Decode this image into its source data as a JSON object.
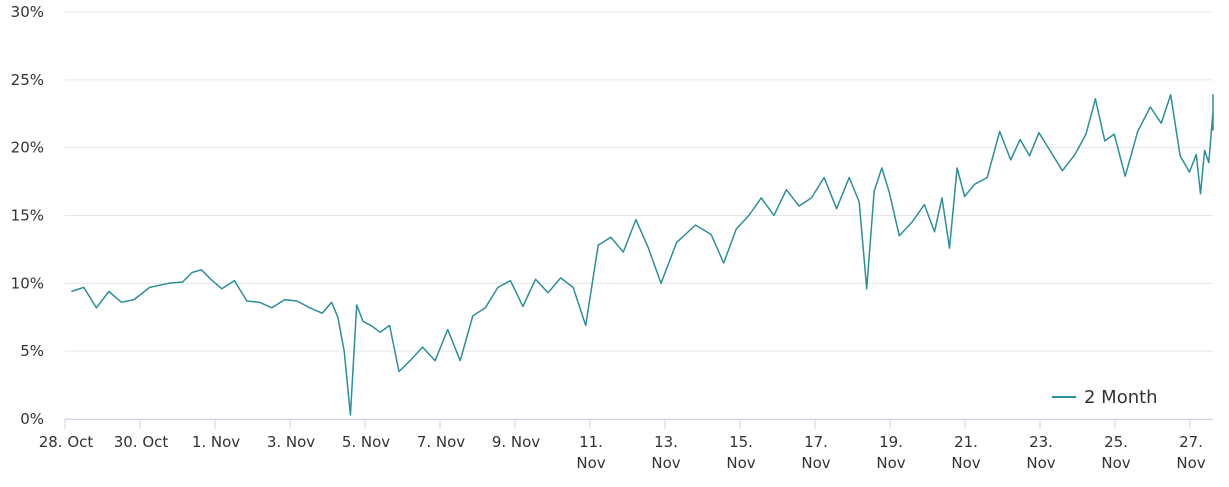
{
  "chart_data": {
    "type": "line",
    "title": "",
    "xlabel": "",
    "ylabel": "",
    "ylim": [
      0,
      30
    ],
    "y_ticks": [
      "0%",
      "5%",
      "10%",
      "15%",
      "20%",
      "25%",
      "30%"
    ],
    "x_range": [
      "2021-10-28",
      "2021-11-27"
    ],
    "x_ticks": [
      [
        "28. Oct"
      ],
      [
        "30. Oct"
      ],
      [
        "1. Nov"
      ],
      [
        "3. Nov"
      ],
      [
        "5. Nov"
      ],
      [
        "7. Nov"
      ],
      [
        "9. Nov"
      ],
      [
        "11.",
        "Nov"
      ],
      [
        "13.",
        "Nov"
      ],
      [
        "15.",
        "Nov"
      ],
      [
        "17.",
        "Nov"
      ],
      [
        "19.",
        "Nov"
      ],
      [
        "21.",
        "Nov"
      ],
      [
        "23.",
        "Nov"
      ],
      [
        "25.",
        "Nov"
      ],
      [
        "27.",
        "Nov"
      ]
    ],
    "grid": true,
    "legend_position": "bottom-right",
    "line_color": "#2b8f9c",
    "series": [
      {
        "name": "2 Month",
        "points": [
          [
            "2021-10-28",
            9.4
          ],
          [
            "2021-10-28",
            9.7
          ],
          [
            "2021-10-28",
            8.2
          ],
          [
            "2021-10-29",
            9.4
          ],
          [
            "2021-10-29",
            8.6
          ],
          [
            "2021-10-29",
            8.8
          ],
          [
            "2021-10-30",
            9.7
          ],
          [
            "2021-10-30",
            10.0
          ],
          [
            "2021-10-31",
            10.1
          ],
          [
            "2021-10-31",
            10.8
          ],
          [
            "2021-10-31",
            11.0
          ],
          [
            "2021-10-31",
            10.3
          ],
          [
            "2021-11-01",
            9.6
          ],
          [
            "2021-11-01",
            10.2
          ],
          [
            "2021-11-01",
            8.7
          ],
          [
            "2021-11-02",
            8.6
          ],
          [
            "2021-11-02",
            8.2
          ],
          [
            "2021-11-02",
            8.8
          ],
          [
            "2021-11-03",
            8.7
          ],
          [
            "2021-11-03",
            8.2
          ],
          [
            "2021-11-03",
            7.8
          ],
          [
            "2021-11-04",
            8.6
          ],
          [
            "2021-11-04",
            7.5
          ],
          [
            "2021-11-04",
            5.0
          ],
          [
            "2021-11-04",
            0.3
          ],
          [
            "2021-11-04",
            8.4
          ],
          [
            "2021-11-04",
            7.2
          ],
          [
            "2021-11-05",
            6.9
          ],
          [
            "2021-11-05",
            6.4
          ],
          [
            "2021-11-05",
            6.9
          ],
          [
            "2021-11-05",
            3.5
          ],
          [
            "2021-11-06",
            4.3
          ],
          [
            "2021-11-06",
            5.3
          ],
          [
            "2021-11-06",
            4.3
          ],
          [
            "2021-11-07",
            6.6
          ],
          [
            "2021-11-07",
            4.3
          ],
          [
            "2021-11-07",
            7.6
          ],
          [
            "2021-11-08",
            8.2
          ],
          [
            "2021-11-08",
            9.7
          ],
          [
            "2021-11-08",
            10.2
          ],
          [
            "2021-11-09",
            8.3
          ],
          [
            "2021-11-09",
            10.3
          ],
          [
            "2021-11-09",
            9.3
          ],
          [
            "2021-11-10",
            10.4
          ],
          [
            "2021-11-10",
            9.7
          ],
          [
            "2021-11-10",
            6.9
          ],
          [
            "2021-11-11",
            12.8
          ],
          [
            "2021-11-11",
            13.4
          ],
          [
            "2021-11-11",
            12.3
          ],
          [
            "2021-11-12",
            14.7
          ],
          [
            "2021-11-12",
            12.6
          ],
          [
            "2021-11-12",
            10.0
          ],
          [
            "2021-11-13",
            13.0
          ],
          [
            "2021-11-13",
            14.3
          ],
          [
            "2021-11-14",
            13.6
          ],
          [
            "2021-11-14",
            11.5
          ],
          [
            "2021-11-14",
            14.0
          ],
          [
            "2021-11-15",
            15.0
          ],
          [
            "2021-11-15",
            16.3
          ],
          [
            "2021-11-15",
            15.0
          ],
          [
            "2021-11-16",
            16.9
          ],
          [
            "2021-11-16",
            15.7
          ],
          [
            "2021-11-16",
            16.3
          ],
          [
            "2021-11-17",
            17.8
          ],
          [
            "2021-11-17",
            15.5
          ],
          [
            "2021-11-17",
            17.8
          ],
          [
            "2021-11-18",
            16.0
          ],
          [
            "2021-11-18",
            9.6
          ],
          [
            "2021-11-18",
            16.8
          ],
          [
            "2021-11-18",
            18.5
          ],
          [
            "2021-11-18",
            16.7
          ],
          [
            "2021-11-19",
            13.5
          ],
          [
            "2021-11-19",
            14.5
          ],
          [
            "2021-11-19",
            15.8
          ],
          [
            "2021-11-20",
            13.8
          ],
          [
            "2021-11-20",
            16.3
          ],
          [
            "2021-11-20",
            12.6
          ],
          [
            "2021-11-20",
            18.5
          ],
          [
            "2021-11-20",
            16.4
          ],
          [
            "2021-11-21",
            17.3
          ],
          [
            "2021-11-21",
            17.8
          ],
          [
            "2021-11-21",
            21.2
          ],
          [
            "2021-11-22",
            19.1
          ],
          [
            "2021-11-22",
            20.6
          ],
          [
            "2021-11-22",
            19.4
          ],
          [
            "2021-11-22",
            21.1
          ],
          [
            "2021-11-23",
            19.8
          ],
          [
            "2021-11-23",
            18.3
          ],
          [
            "2021-11-23",
            19.5
          ],
          [
            "2021-11-24",
            21.0
          ],
          [
            "2021-11-24",
            23.6
          ],
          [
            "2021-11-24",
            20.5
          ],
          [
            "2021-11-24",
            21.0
          ],
          [
            "2021-11-25",
            17.9
          ],
          [
            "2021-11-25",
            21.2
          ],
          [
            "2021-11-25",
            23.0
          ],
          [
            "2021-11-26",
            21.8
          ],
          [
            "2021-11-26",
            23.9
          ],
          [
            "2021-11-26",
            19.4
          ],
          [
            "2021-11-26",
            18.2
          ],
          [
            "2021-11-27",
            19.5
          ],
          [
            "2021-11-27",
            16.6
          ],
          [
            "2021-11-27",
            19.8
          ],
          [
            "2021-11-27",
            18.9
          ],
          [
            "2021-11-27",
            22.7
          ],
          [
            "2021-11-27",
            21.3
          ],
          [
            "2021-11-27",
            23.9
          ],
          [
            "2021-11-27",
            23.4
          ],
          [
            "2021-11-27",
            23.9
          ]
        ]
      }
    ]
  }
}
